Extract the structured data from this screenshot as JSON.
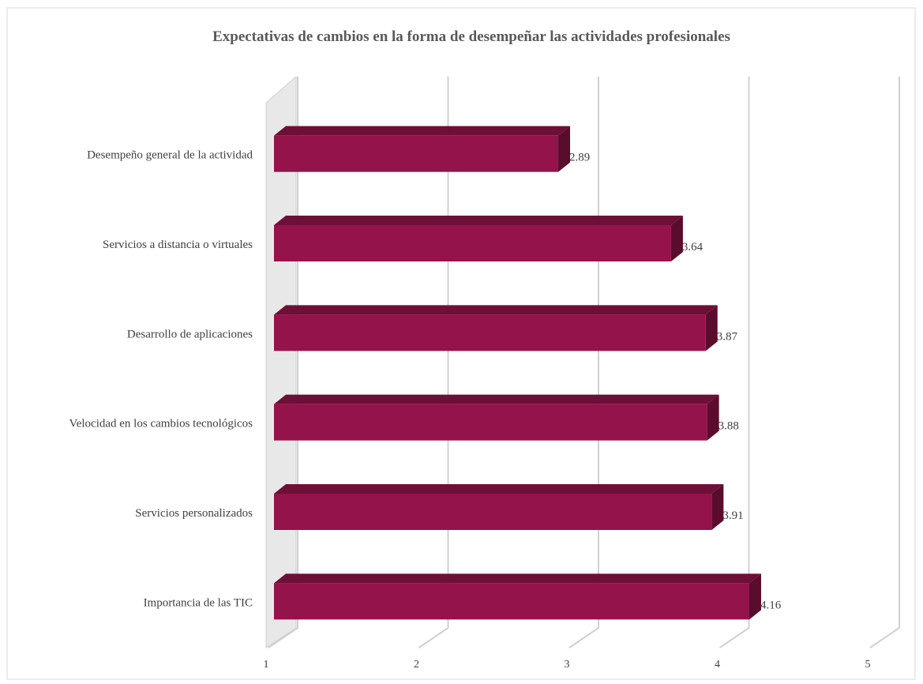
{
  "chart_data": {
    "type": "bar",
    "orientation": "horizontal",
    "three_d": true,
    "title": "Expectativas de cambios en la forma de desempeñar las actividades profesionales",
    "categories": [
      "Desempeño general de la actividad",
      "Servicios a distancia o virtuales",
      "Desarrollo de aplicaciones",
      "Velocidad en los cambios tecnológicos",
      "Servicios personalizados",
      "Importancia de las TIC"
    ],
    "values": [
      2.89,
      3.64,
      3.87,
      3.88,
      3.91,
      4.16
    ],
    "color": "#94134b",
    "xlim": [
      1,
      5
    ],
    "xticks": [
      1,
      2,
      3,
      4,
      5
    ],
    "grid": true
  }
}
